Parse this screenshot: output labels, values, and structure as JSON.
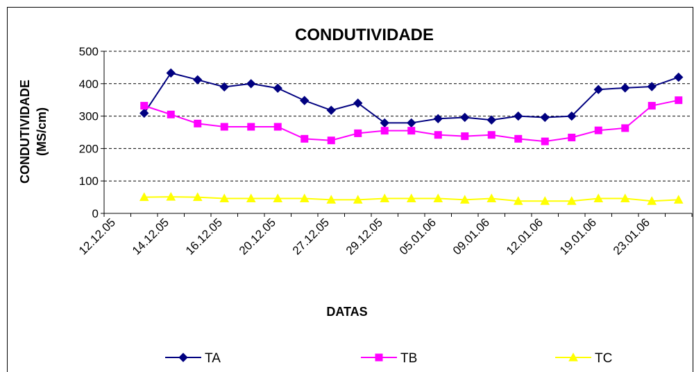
{
  "chart_data": {
    "type": "line",
    "title": "CONDUTIVIDADE",
    "x_label": "DATAS",
    "y_label": [
      "CONDUTIVIDADE",
      "(MS/cm)"
    ],
    "categories": [
      "12.12.05",
      null,
      "14.12.05",
      null,
      "16.12.05",
      null,
      "20.12.05",
      null,
      "27.12.05",
      null,
      "29.12.05",
      null,
      "05.01.06",
      null,
      "09.01.06",
      null,
      "12.01.06",
      null,
      "19.01.06",
      null,
      "23.01.06",
      null
    ],
    "series": [
      {
        "name": "TA",
        "color": "#000080",
        "marker": "diamond",
        "values": [
          null,
          309,
          433,
          412,
          390,
          400,
          386,
          348,
          318,
          340,
          279,
          279,
          292,
          296,
          288,
          300,
          296,
          300,
          382,
          387,
          391,
          420
        ]
      },
      {
        "name": "TB",
        "color": "#ff00ff",
        "marker": "square",
        "values": [
          null,
          332,
          305,
          277,
          267,
          267,
          267,
          230,
          225,
          247,
          255,
          255,
          242,
          238,
          242,
          230,
          222,
          234,
          256,
          263,
          332,
          349
        ]
      },
      {
        "name": "TC",
        "color": "#ffff00",
        "marker": "triangle",
        "values": [
          null,
          50,
          51,
          50,
          46,
          46,
          46,
          46,
          42,
          42,
          46,
          46,
          46,
          42,
          46,
          38,
          38,
          38,
          46,
          46,
          38,
          42
        ]
      }
    ],
    "ylim": [
      0,
      500
    ],
    "yticks": [
      0,
      100,
      200,
      300,
      400,
      500
    ],
    "grid": true,
    "legend": "bottom"
  }
}
